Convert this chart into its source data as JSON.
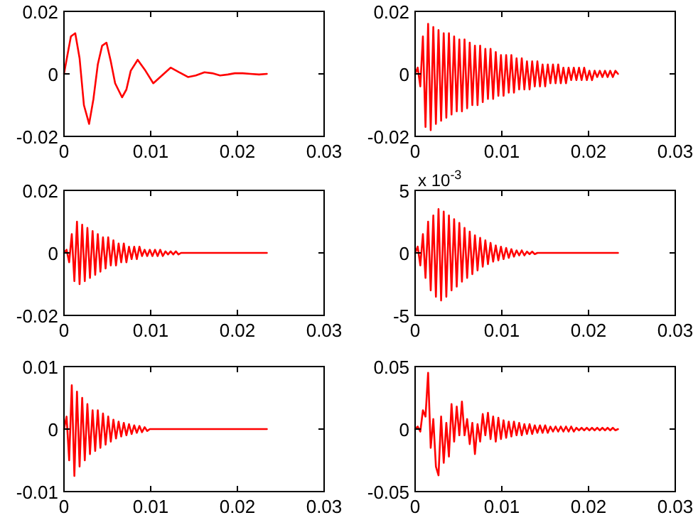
{
  "chart_data": [
    {
      "type": "line",
      "x": [
        0,
        0.0004,
        0.0008,
        0.0013,
        0.0018,
        0.0023,
        0.0029,
        0.0034,
        0.0039,
        0.0044,
        0.0049,
        0.0054,
        0.0059,
        0.0067,
        0.0072,
        0.0077,
        0.0085,
        0.0094,
        0.0103,
        0.0113,
        0.0123,
        0.0133,
        0.0143,
        0.0152,
        0.0162,
        0.0171,
        0.018,
        0.0189,
        0.0197,
        0.0206,
        0.0215,
        0.0225,
        0.0234
      ],
      "series": [
        {
          "color": "#ff0000",
          "values": [
            0,
            0.006,
            0.012,
            0.013,
            0.005,
            -0.01,
            -0.016,
            -0.008,
            0.003,
            0.009,
            0.01,
            0.004,
            -0.003,
            -0.0075,
            -0.005,
            0.001,
            0.0045,
            0.001,
            -0.003,
            -0.0005,
            0.002,
            0.0005,
            -0.001,
            -0.0005,
            0.0005,
            0.0002,
            -0.0005,
            -0.0002,
            0.0002,
            0.0002,
            0,
            -0.0002,
            0
          ]
        }
      ],
      "xlim": [
        0,
        0.03
      ],
      "xticks": [
        0,
        0.01,
        0.02,
        0.03
      ],
      "ylim": [
        -0.02,
        0.02
      ],
      "yticks": [
        -0.02,
        0,
        0.02
      ]
    },
    {
      "type": "line",
      "x": [
        0,
        0.0003,
        0.0006,
        0.0009,
        0.0012,
        0.0015,
        0.0018,
        0.0021,
        0.0024,
        0.0027,
        0.003,
        0.0033,
        0.0036,
        0.0039,
        0.0042,
        0.0045,
        0.0048,
        0.0051,
        0.0054,
        0.0057,
        0.006,
        0.0063,
        0.0066,
        0.0069,
        0.0072,
        0.0075,
        0.0078,
        0.0081,
        0.0084,
        0.0087,
        0.009,
        0.0093,
        0.0096,
        0.0099,
        0.0102,
        0.0105,
        0.0108,
        0.0111,
        0.0114,
        0.0117,
        0.012,
        0.0123,
        0.0126,
        0.0129,
        0.0132,
        0.0135,
        0.0138,
        0.0141,
        0.0144,
        0.0147,
        0.015,
        0.0153,
        0.0156,
        0.0159,
        0.0162,
        0.0165,
        0.0168,
        0.0171,
        0.0174,
        0.0177,
        0.018,
        0.0183,
        0.0186,
        0.0189,
        0.0192,
        0.0195,
        0.0198,
        0.0201,
        0.0204,
        0.0207,
        0.021,
        0.0213,
        0.0216,
        0.0219,
        0.0222,
        0.0225,
        0.0228,
        0.0231,
        0.0234
      ],
      "series": [
        {
          "color": "#ff0000",
          "values": [
            0,
            0.002,
            -0.004,
            0.012,
            -0.017,
            0.016,
            -0.018,
            0.015,
            -0.016,
            0.014,
            -0.015,
            0.013,
            -0.014,
            0.013,
            -0.013,
            0.012,
            -0.012,
            0.011,
            -0.012,
            0.011,
            -0.011,
            0.01,
            -0.01,
            0.009,
            -0.01,
            0.009,
            -0.009,
            0.008,
            -0.008,
            0.008,
            -0.008,
            0.007,
            -0.007,
            0.006,
            -0.007,
            0.006,
            -0.006,
            0.006,
            -0.006,
            0.005,
            -0.005,
            0.005,
            -0.005,
            0.004,
            -0.005,
            0.004,
            -0.004,
            0.004,
            -0.004,
            0.003,
            -0.004,
            0.003,
            -0.003,
            0.003,
            -0.003,
            0.003,
            -0.003,
            0.002,
            -0.003,
            0.002,
            -0.002,
            0.002,
            -0.002,
            0.002,
            -0.002,
            0.002,
            -0.002,
            0.001,
            -0.002,
            0.001,
            -0.001,
            0.001,
            -0.001,
            0.001,
            -0.001,
            0.001,
            -0.001,
            0.001,
            0
          ]
        }
      ],
      "xlim": [
        0,
        0.03
      ],
      "xticks": [
        0,
        0.01,
        0.02,
        0.03
      ],
      "ylim": [
        -0.02,
        0.02
      ],
      "yticks": [
        -0.02,
        0,
        0.02
      ]
    },
    {
      "type": "line",
      "x": [
        0,
        0.0003,
        0.0006,
        0.0009,
        0.0012,
        0.0015,
        0.0018,
        0.0021,
        0.0024,
        0.0027,
        0.003,
        0.0033,
        0.0036,
        0.0039,
        0.0042,
        0.0045,
        0.0048,
        0.0051,
        0.0054,
        0.0057,
        0.006,
        0.0063,
        0.0066,
        0.0069,
        0.0072,
        0.0075,
        0.0078,
        0.0081,
        0.0084,
        0.0087,
        0.009,
        0.0093,
        0.0096,
        0.0099,
        0.0102,
        0.0105,
        0.0108,
        0.0111,
        0.0114,
        0.0117,
        0.012,
        0.0123,
        0.0126,
        0.0129,
        0.0132,
        0.0135,
        0.0138,
        0.0141,
        0.0144,
        0.0147,
        0.015,
        0.0153,
        0.0156,
        0.0159,
        0.0162,
        0.0165,
        0.0168,
        0.0171,
        0.0174,
        0.0177,
        0.018,
        0.0183,
        0.0186,
        0.0189,
        0.0192,
        0.0195,
        0.0198,
        0.0201,
        0.0204,
        0.0207,
        0.021,
        0.0213,
        0.0216,
        0.0219,
        0.0222,
        0.0225,
        0.0228,
        0.0231,
        0.0234
      ],
      "series": [
        {
          "color": "#ff0000",
          "values": [
            0,
            0.001,
            -0.003,
            0.006,
            -0.009,
            0.01,
            -0.01,
            0.009,
            -0.009,
            0.008,
            -0.008,
            0.007,
            -0.007,
            0.006,
            -0.006,
            0.005,
            -0.005,
            0.005,
            -0.004,
            0.004,
            -0.004,
            0.003,
            -0.003,
            0.003,
            -0.003,
            0.002,
            -0.002,
            0.002,
            -0.002,
            0.002,
            -0.001,
            0.001,
            -0.001,
            0.001,
            -0.001,
            0.001,
            -0.001,
            0.001,
            -0.001,
            0.0005,
            -0.0005,
            0.0005,
            -0.0005,
            0.0005,
            -0.0005,
            0,
            0,
            0,
            0,
            0,
            0,
            0,
            0,
            0,
            0,
            0,
            0,
            0,
            0,
            0,
            0,
            0,
            0,
            0,
            0,
            0,
            0,
            0,
            0,
            0,
            0,
            0,
            0,
            0,
            0,
            0,
            0,
            0,
            0
          ]
        }
      ],
      "xlim": [
        0,
        0.03
      ],
      "xticks": [
        0,
        0.01,
        0.02,
        0.03
      ],
      "ylim": [
        -0.02,
        0.02
      ],
      "yticks": [
        -0.02,
        0,
        0.02
      ]
    },
    {
      "type": "line",
      "x": [
        0,
        0.0003,
        0.0006,
        0.0009,
        0.0012,
        0.0015,
        0.0018,
        0.0021,
        0.0024,
        0.0027,
        0.003,
        0.0033,
        0.0036,
        0.0039,
        0.0042,
        0.0045,
        0.0048,
        0.0051,
        0.0054,
        0.0057,
        0.006,
        0.0063,
        0.0066,
        0.0069,
        0.0072,
        0.0075,
        0.0078,
        0.0081,
        0.0084,
        0.0087,
        0.009,
        0.0093,
        0.0096,
        0.0099,
        0.0102,
        0.0105,
        0.0108,
        0.0111,
        0.0114,
        0.0117,
        0.012,
        0.0123,
        0.0126,
        0.0129,
        0.0132,
        0.0135,
        0.0138,
        0.0141,
        0.0144,
        0.0147,
        0.015,
        0.0153,
        0.0156,
        0.0159,
        0.0162,
        0.0165,
        0.0168,
        0.0171,
        0.0174,
        0.0177,
        0.018,
        0.0183,
        0.0186,
        0.0189,
        0.0192,
        0.0195,
        0.0198,
        0.0201,
        0.0204,
        0.0207,
        0.021,
        0.0213,
        0.0216,
        0.0219,
        0.0222,
        0.0225,
        0.0228,
        0.0231,
        0.0234
      ],
      "series": [
        {
          "color": "#ff0000",
          "values": [
            0,
            0.5,
            -1,
            1.5,
            -2,
            2.5,
            -3,
            3,
            -3.5,
            3.5,
            -3.8,
            3.3,
            -3.5,
            3,
            -3,
            2.7,
            -2.7,
            2.4,
            -2.3,
            2,
            -2,
            1.7,
            -1.7,
            1.4,
            -1.4,
            1.2,
            -1.1,
            1,
            -0.9,
            0.8,
            -0.7,
            0.6,
            -0.6,
            0.5,
            -0.5,
            0.4,
            -0.4,
            0.3,
            -0.3,
            0.2,
            -0.2,
            0.2,
            -0.2,
            0.1,
            -0.1,
            0.1,
            -0.1,
            0,
            0,
            0,
            0,
            0,
            0,
            0,
            0,
            0,
            0,
            0,
            0,
            0,
            0,
            0,
            0,
            0,
            0,
            0,
            0,
            0,
            0,
            0,
            0,
            0,
            0,
            0,
            0,
            0,
            0,
            0,
            0
          ]
        }
      ],
      "xlim": [
        0,
        0.03
      ],
      "xticks": [
        0,
        0.01,
        0.02,
        0.03
      ],
      "ylim": [
        -5,
        5
      ],
      "yticks": [
        -5,
        0,
        5
      ],
      "annotations": [
        "x 10$^{-3}$"
      ]
    },
    {
      "type": "line",
      "x": [
        0,
        0.0003,
        0.0006,
        0.0009,
        0.0012,
        0.0015,
        0.0018,
        0.0021,
        0.0024,
        0.0027,
        0.003,
        0.0033,
        0.0036,
        0.0039,
        0.0042,
        0.0045,
        0.0048,
        0.0051,
        0.0054,
        0.0057,
        0.006,
        0.0063,
        0.0066,
        0.0069,
        0.0072,
        0.0075,
        0.0078,
        0.0081,
        0.0084,
        0.0087,
        0.009,
        0.0093,
        0.0096,
        0.0099,
        0.0102,
        0.0105,
        0.0108,
        0.0111,
        0.0114,
        0.0117,
        0.012,
        0.0123,
        0.0126,
        0.0129,
        0.0132,
        0.0135,
        0.0138,
        0.0141,
        0.0144,
        0.0147,
        0.015,
        0.0153,
        0.0156,
        0.0159,
        0.0162,
        0.0165,
        0.0168,
        0.0171,
        0.0174,
        0.0177,
        0.018,
        0.0183,
        0.0186,
        0.0189,
        0.0192,
        0.0195,
        0.0198,
        0.0201,
        0.0204,
        0.0207,
        0.021,
        0.0213,
        0.0216,
        0.0219,
        0.0222,
        0.0225,
        0.0228,
        0.0231,
        0.0234
      ],
      "series": [
        {
          "color": "#ff0000",
          "values": [
            0,
            0.002,
            -0.005,
            0.007,
            -0.0075,
            0.006,
            -0.006,
            0.005,
            -0.005,
            0.004,
            -0.004,
            0.003,
            -0.0035,
            0.003,
            -0.003,
            0.0025,
            -0.0025,
            0.002,
            -0.002,
            0.0015,
            -0.0015,
            0.0012,
            -0.0012,
            0.001,
            -0.001,
            0.0008,
            -0.0008,
            0.0006,
            -0.0006,
            0.0005,
            -0.0005,
            0.0003,
            -0.0003,
            0,
            0,
            0,
            0,
            0,
            0,
            0,
            0,
            0,
            0,
            0,
            0,
            0,
            0,
            0,
            0,
            0,
            0,
            0,
            0,
            0,
            0,
            0,
            0,
            0,
            0,
            0,
            0,
            0,
            0,
            0,
            0,
            0,
            0,
            0,
            0,
            0,
            0,
            0,
            0,
            0,
            0,
            0,
            0,
            0,
            0
          ]
        }
      ],
      "xlim": [
        0,
        0.03
      ],
      "xticks": [
        0,
        0.01,
        0.02,
        0.03
      ],
      "ylim": [
        -0.01,
        0.01
      ],
      "yticks": [
        -0.01,
        0,
        0.01
      ]
    },
    {
      "type": "line",
      "x": [
        0,
        0.0003,
        0.0006,
        0.0009,
        0.0012,
        0.0015,
        0.0018,
        0.0021,
        0.0024,
        0.0027,
        0.003,
        0.0033,
        0.0036,
        0.0039,
        0.0042,
        0.0045,
        0.0048,
        0.0051,
        0.0054,
        0.0057,
        0.006,
        0.0063,
        0.0066,
        0.0069,
        0.0072,
        0.0075,
        0.0078,
        0.0081,
        0.0084,
        0.0087,
        0.009,
        0.0093,
        0.0096,
        0.0099,
        0.0102,
        0.0105,
        0.0108,
        0.0111,
        0.0114,
        0.0117,
        0.012,
        0.0123,
        0.0126,
        0.0129,
        0.0132,
        0.0135,
        0.0138,
        0.0141,
        0.0144,
        0.0147,
        0.015,
        0.0153,
        0.0156,
        0.0159,
        0.0162,
        0.0165,
        0.0168,
        0.0171,
        0.0174,
        0.0177,
        0.018,
        0.0183,
        0.0186,
        0.0189,
        0.0192,
        0.0195,
        0.0198,
        0.0201,
        0.0204,
        0.0207,
        0.021,
        0.0213,
        0.0216,
        0.0219,
        0.0222,
        0.0225,
        0.0228,
        0.0231,
        0.0234
      ],
      "series": [
        {
          "color": "#ff0000",
          "values": [
            0,
            0.002,
            -0.002,
            0.015,
            0.01,
            0.045,
            -0.015,
            0.008,
            -0.03,
            -0.037,
            0.01,
            -0.027,
            0.005,
            -0.022,
            0.02,
            -0.01,
            0.018,
            -0.005,
            0.022,
            -0.005,
            0.008,
            -0.012,
            0.005,
            -0.02,
            0.004,
            -0.01,
            0.012,
            -0.005,
            0.013,
            -0.008,
            0.01,
            -0.01,
            0.009,
            -0.008,
            0.007,
            -0.007,
            0.006,
            -0.006,
            0.006,
            -0.005,
            0.005,
            -0.005,
            0.004,
            -0.004,
            0.004,
            -0.004,
            0.003,
            -0.003,
            0.003,
            -0.003,
            0.003,
            -0.003,
            0.002,
            -0.002,
            0.002,
            -0.002,
            0.002,
            -0.002,
            0.002,
            -0.002,
            0.002,
            -0.002,
            0.001,
            -0.001,
            0.001,
            -0.001,
            0.001,
            -0.001,
            0.001,
            -0.001,
            0.001,
            -0.001,
            0.001,
            -0.001,
            0.001,
            -0.001,
            0.001,
            -0.001,
            0
          ]
        }
      ],
      "xlim": [
        0,
        0.03
      ],
      "xticks": [
        0,
        0.01,
        0.02,
        0.03
      ],
      "ylim": [
        -0.05,
        0.05
      ],
      "yticks": [
        -0.05,
        0,
        0.05
      ]
    }
  ]
}
